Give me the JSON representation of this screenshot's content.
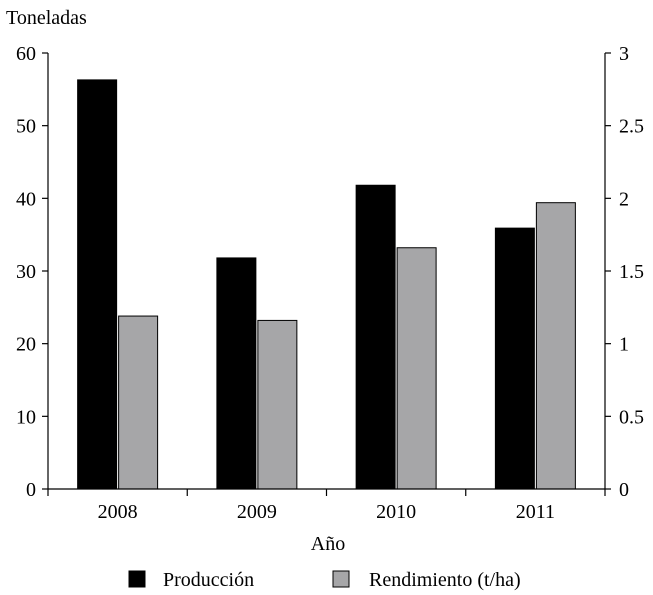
{
  "chart_data": {
    "type": "bar",
    "categories": [
      "2008",
      "2009",
      "2010",
      "2011"
    ],
    "series": [
      {
        "name": "Producción",
        "axis": "left",
        "color": "#000000",
        "values": [
          56.3,
          31.8,
          41.8,
          35.9
        ]
      },
      {
        "name": "Rendimiento (t/ha)",
        "axis": "right",
        "color": "#a6a6a8",
        "values": [
          1.19,
          1.16,
          1.66,
          1.97
        ]
      }
    ],
    "left_axis": {
      "label": "Toneladas",
      "ylim": [
        0,
        60
      ],
      "ticks": [
        "0",
        "10",
        "20",
        "30",
        "40",
        "50",
        "60"
      ]
    },
    "right_axis": {
      "label": "",
      "ylim": [
        0,
        3
      ],
      "ticks": [
        "0",
        "0.5",
        "1",
        "1.5",
        "2",
        "2.5",
        "3"
      ]
    },
    "xlabel": "Año",
    "title": "",
    "grid": false,
    "legend_position": "bottom"
  }
}
